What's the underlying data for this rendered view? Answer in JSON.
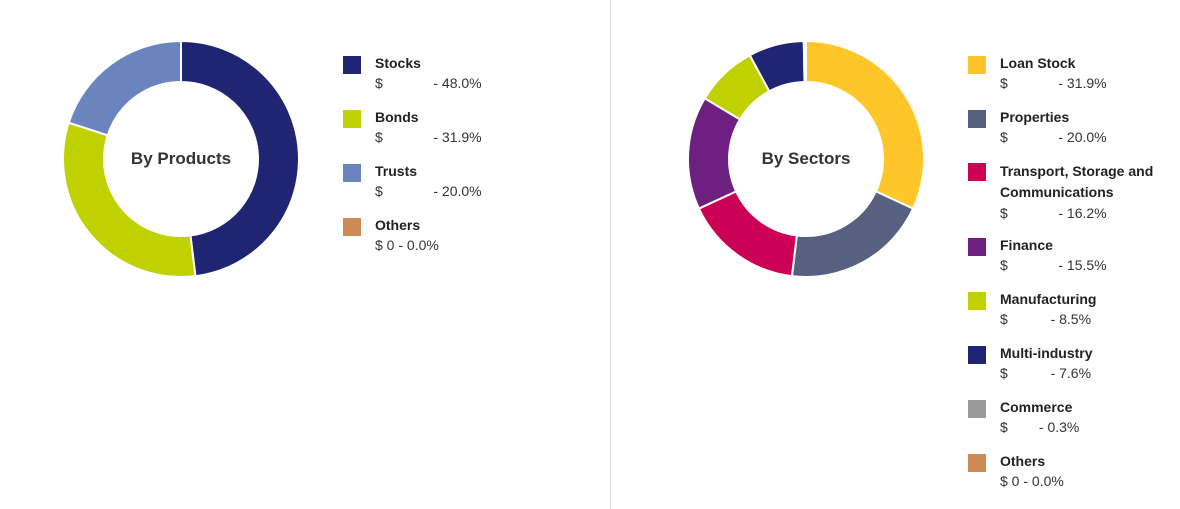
{
  "chart_data": [
    {
      "type": "pie",
      "title": "By Products",
      "donut": true,
      "categories": [
        "Stocks",
        "Bonds",
        "Trusts",
        "Others"
      ],
      "values": [
        48.0,
        31.9,
        20.0,
        0.0
      ],
      "colors": [
        "#1f2473",
        "#bfd200",
        "#6a84bf",
        "#cc8b52"
      ],
      "value_labels": [
        "$ - 48.0%",
        "$ - 31.9%",
        "$ - 20.0%",
        "$ 0 - 0.0%"
      ],
      "legend_position": "right"
    },
    {
      "type": "pie",
      "title": "By Sectors",
      "donut": true,
      "categories": [
        "Loan Stock",
        "Properties",
        "Transport, Storage and Communications",
        "Finance",
        "Manufacturing",
        "Multi-industry",
        "Commerce",
        "Others"
      ],
      "values": [
        31.9,
        20.0,
        16.2,
        15.5,
        8.5,
        7.6,
        0.3,
        0.0
      ],
      "colors": [
        "#ffc629",
        "#58607f",
        "#cc0055",
        "#6e2080",
        "#bfd200",
        "#1f2473",
        "#9a9a9a",
        "#cc8b52"
      ],
      "value_labels": [
        "$ - 31.9%",
        "$ - 20.0%",
        "$ - 16.2%",
        "$ - 15.5%",
        "$ - 8.5%",
        "$ - 7.6%",
        "$ - 0.3%",
        "$ 0 - 0.0%"
      ],
      "legend_position": "right"
    }
  ],
  "products": {
    "title": "By Products",
    "items": [
      {
        "name": "Stocks",
        "value": "$             - 48.0%"
      },
      {
        "name": "Bonds",
        "value": "$             - 31.9%"
      },
      {
        "name": "Trusts",
        "value": "$             - 20.0%"
      },
      {
        "name": "Others",
        "value": "$ 0 - 0.0%"
      }
    ]
  },
  "sectors": {
    "title": "By Sectors",
    "items": [
      {
        "name": "Loan Stock",
        "value": "$             - 31.9%"
      },
      {
        "name": "Properties",
        "value": "$             - 20.0%"
      },
      {
        "name": "Transport, Storage and Communications",
        "value": "$             - 16.2%"
      },
      {
        "name": "Finance",
        "value": "$             - 15.5%"
      },
      {
        "name": "Manufacturing",
        "value": "$           - 8.5%"
      },
      {
        "name": "Multi-industry",
        "value": "$           - 7.6%"
      },
      {
        "name": "Commerce",
        "value": "$        - 0.3%"
      },
      {
        "name": "Others",
        "value": "$ 0 - 0.0%"
      }
    ]
  }
}
